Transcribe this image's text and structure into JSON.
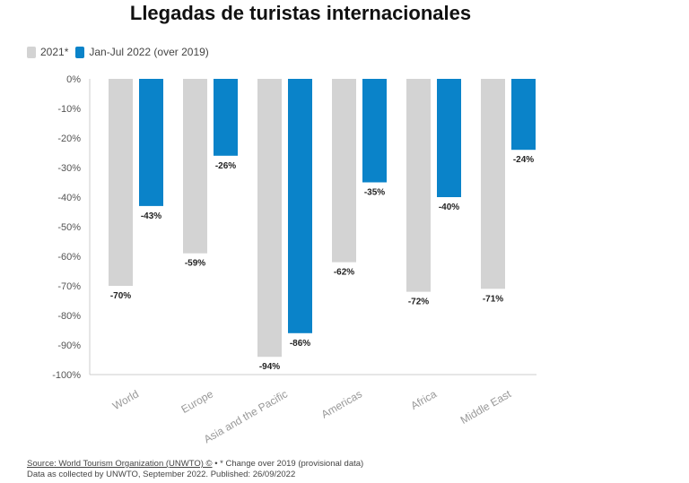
{
  "title": "Llegadas de turistas internacionales",
  "legend": [
    {
      "label": "2021*",
      "color": "#d3d3d3"
    },
    {
      "label": "Jan-Jul 2022 (over 2019)",
      "color": "#0a83c9"
    }
  ],
  "chart_data": {
    "type": "bar",
    "categories": [
      "World",
      "Europe",
      "Asia and the Pacific",
      "Americas",
      "Africa",
      "Middle East"
    ],
    "series": [
      {
        "name": "2021*",
        "values": [
          -70,
          -59,
          -94,
          -62,
          -72,
          -71
        ],
        "color": "#d3d3d3"
      },
      {
        "name": "Jan-Jul 2022 (over 2019)",
        "values": [
          -43,
          -26,
          -86,
          -35,
          -40,
          -24
        ],
        "color": "#0a83c9"
      }
    ],
    "ylim": [
      -100,
      0
    ],
    "yticks": [
      "0%",
      "-10%",
      "-20%",
      "-30%",
      "-40%",
      "-50%",
      "-60%",
      "-70%",
      "-80%",
      "-90%",
      "-100%"
    ],
    "data_labels": [
      [
        "-70%",
        "-59%",
        "-94%",
        "-62%",
        "-72%",
        "-71%"
      ],
      [
        "-43%",
        "-26%",
        "-86%",
        "-35%",
        "-40%",
        "-24%"
      ]
    ],
    "grid": false,
    "legend_position": "top-left"
  },
  "footer": {
    "source_link": "Source: World Tourism Organization (UNWTO) ©",
    "source_note": " • * Change over 2019 (provisional data)",
    "line2": "Data as collected by UNWTO, September 2022. Published: 26/09/2022"
  }
}
